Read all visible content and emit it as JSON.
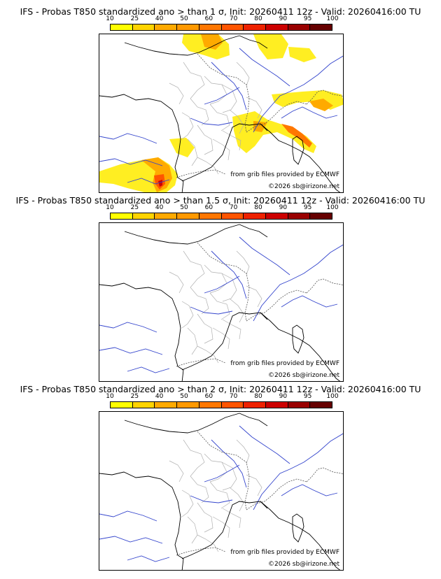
{
  "colorbar": {
    "ticks": [
      "10",
      "25",
      "40",
      "50",
      "60",
      "70",
      "80",
      "90",
      "95",
      "100"
    ],
    "colors": [
      "#ffff00",
      "#ffd400",
      "#ffaa00",
      "#ff9900",
      "#ff7700",
      "#ff5500",
      "#ee2200",
      "#cc0000",
      "#990000",
      "#660000"
    ]
  },
  "panels": [
    {
      "title": "IFS - Probas T850  standardized ano > than 1 σ, Init: 20260411 12z - Valid: 20260416:00 TU",
      "credit_source": "from grib files provided by ECMWF",
      "credit_copy": "©2026 sb@irizone.net",
      "anomaly": true
    },
    {
      "title": "IFS - Probas T850  standardized ano > than 1.5 σ, Init: 20260411 12z - Valid: 20260416:00 TU",
      "credit_source": "from grib files provided by ECMWF",
      "credit_copy": "©2026 sb@irizone.net",
      "anomaly": false
    },
    {
      "title": "IFS - Probas T850  standardized ano > than 2 σ, Init: 20260411 12z - Valid: 20260416:00 TU",
      "credit_source": "from grib files provided by ECMWF",
      "credit_copy": "©2026 sb@irizone.net",
      "anomaly": false
    }
  ]
}
